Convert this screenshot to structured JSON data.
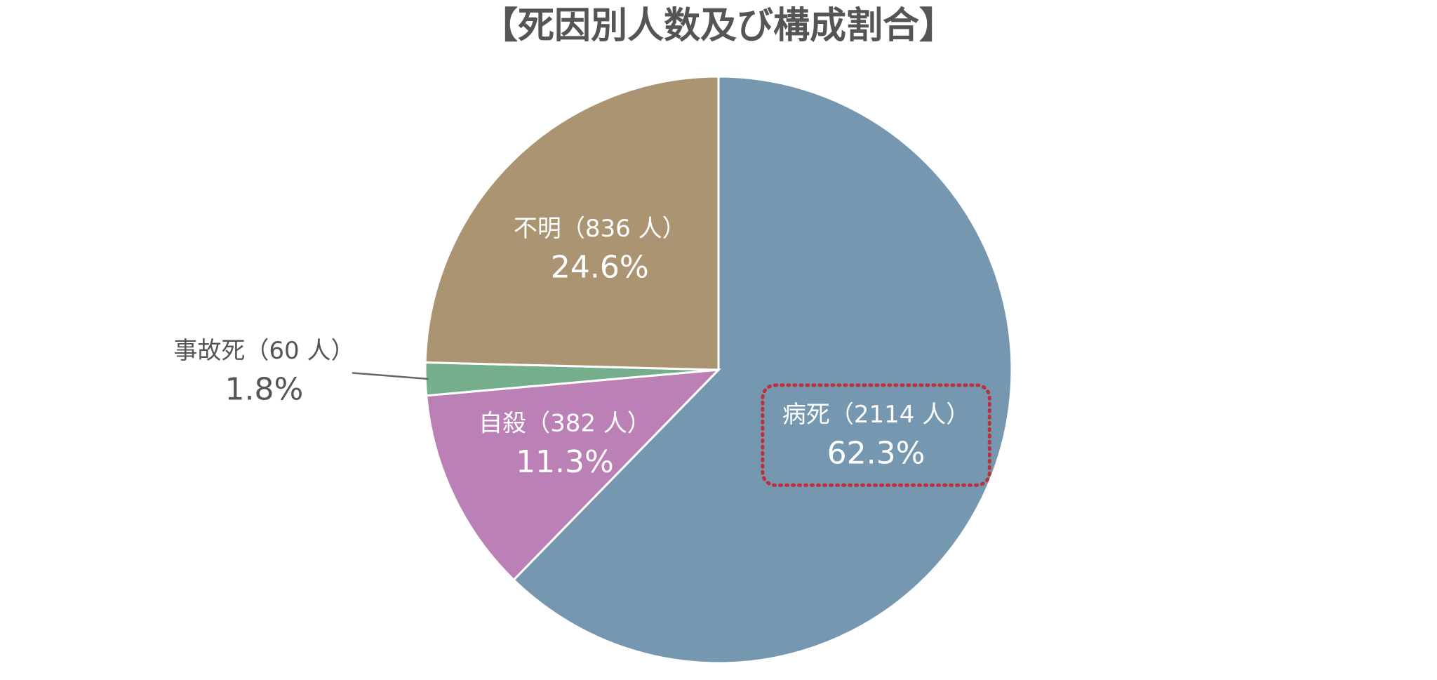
{
  "chart_data": {
    "type": "pie",
    "title": "【死因別人数及び構成割合】",
    "categories": [
      "病死（2114 人）",
      "自殺（382 人）",
      "事故死（60 人）",
      "不明（836 人）"
    ],
    "values": [
      62.3,
      11.3,
      1.8,
      24.6
    ],
    "value_labels": [
      "62.3%",
      "11.3%",
      "1.8%",
      "24.6%"
    ],
    "colors": [
      "#7598b0",
      "#bb80b6",
      "#75ae8a",
      "#aa9472"
    ]
  }
}
